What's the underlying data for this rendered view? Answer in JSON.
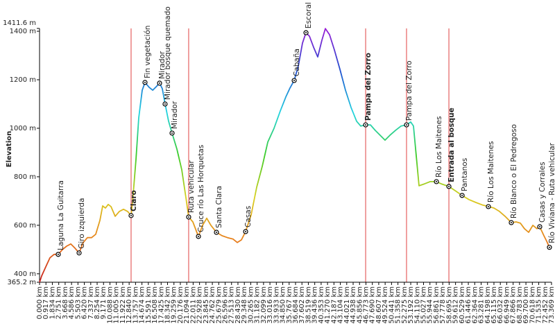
{
  "chart_data": {
    "type": "elevation-profile",
    "y_label": "Elevation",
    "ylim": [
      365.2,
      1411.6
    ],
    "yticks": [
      {
        "value": 365.2,
        "label": "365.2 m"
      },
      {
        "value": 400,
        "label": "400 m"
      },
      {
        "value": 600,
        "label": "600 m"
      },
      {
        "value": 800,
        "label": "800 m"
      },
      {
        "value": 1000,
        "label": "1000 m"
      },
      {
        "value": 1200,
        "label": "1200 m"
      },
      {
        "value": 1400,
        "label": "1400 m"
      },
      {
        "value": 1411.6,
        "label": "1411.6 m"
      }
    ],
    "xlim": [
      0,
      73.369
    ],
    "xticks": [
      {
        "value": 0,
        "label": "0.000 km"
      },
      {
        "value": 0.917,
        "label": "0.917 km"
      },
      {
        "value": 1.834,
        "label": "1.834 km"
      },
      {
        "value": 2.751,
        "label": "2.751 km"
      },
      {
        "value": 3.668,
        "label": "3.668 km"
      },
      {
        "value": 4.586,
        "label": "4.586 km"
      },
      {
        "value": 5.503,
        "label": "5.503 km"
      },
      {
        "value": 6.42,
        "label": "6.420 km"
      },
      {
        "value": 7.337,
        "label": "7.337 km"
      },
      {
        "value": 8.254,
        "label": "8.254 km"
      },
      {
        "value": 9.171,
        "label": "9.171 km"
      },
      {
        "value": 10.088,
        "label": "10.088 km"
      },
      {
        "value": 11.005,
        "label": "11.005 km"
      },
      {
        "value": 11.922,
        "label": "11.922 km"
      },
      {
        "value": 12.84,
        "label": "12.840 km"
      },
      {
        "value": 13.757,
        "label": "13.757 km"
      },
      {
        "value": 14.674,
        "label": "14.674 km"
      },
      {
        "value": 15.591,
        "label": "15.591 km"
      },
      {
        "value": 16.508,
        "label": "16.508 km"
      },
      {
        "value": 17.425,
        "label": "17.425 km"
      },
      {
        "value": 18.342,
        "label": "18.342 km"
      },
      {
        "value": 19.259,
        "label": "19.259 km"
      },
      {
        "value": 20.176,
        "label": "20.176 km"
      },
      {
        "value": 21.094,
        "label": "21.094 km"
      },
      {
        "value": 22.011,
        "label": "22.011 km"
      },
      {
        "value": 22.928,
        "label": "22.928 km"
      },
      {
        "value": 23.845,
        "label": "23.845 km"
      },
      {
        "value": 24.762,
        "label": "24.762 km"
      },
      {
        "value": 25.679,
        "label": "25.679 km"
      },
      {
        "value": 26.596,
        "label": "26.596 km"
      },
      {
        "value": 27.513,
        "label": "27.513 km"
      },
      {
        "value": 28.43,
        "label": "28.430 km"
      },
      {
        "value": 29.348,
        "label": "29.348 km"
      },
      {
        "value": 30.265,
        "label": "30.265 km"
      },
      {
        "value": 31.182,
        "label": "31.182 km"
      },
      {
        "value": 32.099,
        "label": "32.099 km"
      },
      {
        "value": 33.016,
        "label": "33.016 km"
      },
      {
        "value": 33.933,
        "label": "33.933 km"
      },
      {
        "value": 34.85,
        "label": "34.850 km"
      },
      {
        "value": 35.767,
        "label": "35.767 km"
      },
      {
        "value": 36.684,
        "label": "36.684 km"
      },
      {
        "value": 37.602,
        "label": "37.602 km"
      },
      {
        "value": 38.519,
        "label": "38.519 km"
      },
      {
        "value": 39.436,
        "label": "39.436 km"
      },
      {
        "value": 40.353,
        "label": "40.353 km"
      },
      {
        "value": 41.27,
        "label": "41.270 km"
      },
      {
        "value": 42.187,
        "label": "42.187 km"
      },
      {
        "value": 43.104,
        "label": "43.104 km"
      },
      {
        "value": 44.021,
        "label": "44.021 km"
      },
      {
        "value": 44.938,
        "label": "44.938 km"
      },
      {
        "value": 45.856,
        "label": "45.856 km"
      },
      {
        "value": 46.773,
        "label": "46.773 km"
      },
      {
        "value": 47.69,
        "label": "47.690 km"
      },
      {
        "value": 48.607,
        "label": "48.607 km"
      },
      {
        "value": 49.524,
        "label": "49.524 km"
      },
      {
        "value": 50.441,
        "label": "50.441 km"
      },
      {
        "value": 51.358,
        "label": "51.358 km"
      },
      {
        "value": 52.275,
        "label": "52.275 km"
      },
      {
        "value": 53.192,
        "label": "53.192 km"
      },
      {
        "value": 54.11,
        "label": "54.110 km"
      },
      {
        "value": 55.027,
        "label": "55.027 km"
      },
      {
        "value": 55.944,
        "label": "55.944 km"
      },
      {
        "value": 56.861,
        "label": "56.861 km"
      },
      {
        "value": 57.778,
        "label": "57.778 km"
      },
      {
        "value": 58.695,
        "label": "58.695 km"
      },
      {
        "value": 59.612,
        "label": "59.612 km"
      },
      {
        "value": 60.529,
        "label": "60.529 km"
      },
      {
        "value": 61.446,
        "label": "61.446 km"
      },
      {
        "value": 62.364,
        "label": "62.364 km"
      },
      {
        "value": 63.281,
        "label": "63.281 km"
      },
      {
        "value": 64.198,
        "label": "64.198 km"
      },
      {
        "value": 65.115,
        "label": "65.115 km"
      },
      {
        "value": 66.032,
        "label": "66.032 km"
      },
      {
        "value": 66.949,
        "label": "66.949 km"
      },
      {
        "value": 67.866,
        "label": "67.866 km"
      },
      {
        "value": 68.783,
        "label": "68.783 km"
      },
      {
        "value": 69.7,
        "label": "69.700 km"
      },
      {
        "value": 70.618,
        "label": "70.618 km"
      },
      {
        "value": 71.535,
        "label": "71.535 km"
      },
      {
        "value": 72.452,
        "label": "72.452 km"
      },
      {
        "value": 73.369,
        "label": "73.369 km"
      }
    ],
    "x": [
      0,
      0.3,
      0.89,
      1.49,
      2.09,
      2.68,
      3.28,
      3.88,
      4.47,
      5.07,
      5.67,
      6.26,
      6.86,
      7.46,
      8.05,
      8.65,
      9.05,
      9.44,
      9.84,
      10.24,
      10.84,
      11.43,
      12.03,
      12.63,
      13.12,
      13.42,
      13.82,
      14.22,
      14.71,
      15.11,
      15.71,
      16.21,
      16.7,
      17.2,
      17.6,
      17.99,
      18.49,
      18.99,
      19.68,
      20.38,
      20.98,
      21.37,
      21.97,
      22.77,
      23.36,
      23.96,
      24.56,
      25.35,
      26.15,
      26.94,
      27.74,
      28.33,
      28.93,
      29.53,
      30.32,
      31.12,
      31.91,
      32.71,
      33.6,
      34.5,
      35.29,
      35.89,
      36.49,
      37.08,
      37.68,
      38.18,
      38.67,
      39.27,
      39.87,
      40.46,
      40.96,
      41.56,
      42.25,
      43.05,
      43.84,
      44.64,
      45.43,
      46.03,
      46.73,
      47.42,
      48.12,
      48.81,
      49.51,
      50.21,
      51.0,
      51.8,
      52.59,
      53.19,
      53.59,
      53.98,
      54.38,
      55.18,
      55.97,
      56.87,
      57.56,
      58.66,
      59.55,
      60.55,
      61.54,
      62.53,
      63.53,
      64.32,
      65.12,
      65.91,
      66.71,
      67.6,
      68.3,
      68.9,
      69.49,
      70.09,
      70.69,
      71.28,
      71.68,
      72.28,
      72.68,
      73.07,
      73.37
    ],
    "values": [
      365,
      391,
      429,
      466,
      480,
      480,
      500,
      514,
      523,
      506,
      486,
      529,
      549,
      549,
      563,
      620,
      680,
      671,
      686,
      677,
      637,
      657,
      666,
      657,
      640,
      729,
      871,
      1043,
      1157,
      1189,
      1169,
      1157,
      1171,
      1186,
      1163,
      1100,
      1029,
      980,
      914,
      829,
      714,
      634,
      614,
      554,
      600,
      629,
      600,
      571,
      557,
      549,
      543,
      529,
      540,
      574,
      643,
      757,
      843,
      943,
      1000,
      1071,
      1129,
      1166,
      1197,
      1257,
      1351,
      1394,
      1380,
      1334,
      1294,
      1363,
      1411,
      1386,
      1323,
      1243,
      1157,
      1086,
      1029,
      1009,
      1014,
      1014,
      991,
      971,
      951,
      971,
      991,
      1009,
      1014,
      1026,
      1009,
      886,
      763,
      771,
      780,
      780,
      771,
      760,
      743,
      723,
      706,
      694,
      683,
      677,
      671,
      657,
      637,
      611,
      614,
      609,
      586,
      571,
      600,
      586,
      594,
      557,
      534,
      509,
      509
    ],
    "colors": [
      "#c81e1e",
      "#e8801c",
      "#d8d020",
      "#3ccc28",
      "#22d4e0",
      "#2050d0",
      "#9a1ed6"
    ],
    "waypoints": [
      {
        "name": "Laguna La Guitarra",
        "x": 2.68,
        "elevation": 480,
        "bold": false,
        "line": false
      },
      {
        "name": "Giro izquierda",
        "x": 5.67,
        "elevation": 486,
        "bold": false,
        "line": false
      },
      {
        "name": "Claro",
        "x": 13.12,
        "elevation": 640,
        "bold": true,
        "line": true
      },
      {
        "name": "Fin vegetación",
        "x": 15.11,
        "elevation": 1189,
        "bold": false,
        "line": false
      },
      {
        "name": "Mirador",
        "x": 17.2,
        "elevation": 1186,
        "bold": false,
        "line": false
      },
      {
        "name": "Mirador bosque quemado",
        "x": 17.99,
        "elevation": 1100,
        "bold": false,
        "line": false
      },
      {
        "name": "Mirador",
        "x": 18.99,
        "elevation": 980,
        "bold": false,
        "line": false
      },
      {
        "name": "Ruta vehicular",
        "x": 21.37,
        "elevation": 634,
        "bold": false,
        "line": true
      },
      {
        "name": "Cruce río Las Horquetas",
        "x": 22.77,
        "elevation": 554,
        "bold": false,
        "line": false
      },
      {
        "name": "Santa Clara",
        "x": 25.35,
        "elevation": 571,
        "bold": false,
        "line": false
      },
      {
        "name": "Casas",
        "x": 29.53,
        "elevation": 574,
        "bold": false,
        "line": false
      },
      {
        "name": "Cabaña",
        "x": 36.49,
        "elevation": 1197,
        "bold": false,
        "line": false
      },
      {
        "name": "Escoral",
        "x": 38.18,
        "elevation": 1394,
        "bold": false,
        "line": false
      },
      {
        "name": "Pampa del Zorro",
        "x": 46.73,
        "elevation": 1014,
        "bold": true,
        "line": true
      },
      {
        "name": "Pampa del Zorro",
        "x": 52.59,
        "elevation": 1014,
        "bold": false,
        "line": true
      },
      {
        "name": "Río Los Maitenes",
        "x": 56.87,
        "elevation": 780,
        "bold": false,
        "line": false
      },
      {
        "name": "Entrada al bosque",
        "x": 58.66,
        "elevation": 760,
        "bold": true,
        "line": true
      },
      {
        "name": "Pantanos",
        "x": 60.55,
        "elevation": 723,
        "bold": false,
        "line": false
      },
      {
        "name": "Río Los Maitenes",
        "x": 64.32,
        "elevation": 677,
        "bold": false,
        "line": false
      },
      {
        "name": "Río Blanco o El Pedregoso",
        "x": 67.6,
        "elevation": 611,
        "bold": false,
        "line": false
      },
      {
        "name": "Casas y Corrales",
        "x": 71.68,
        "elevation": 594,
        "bold": false,
        "line": false
      },
      {
        "name": "Río Viviana - Ruta vehicular",
        "x": 73.07,
        "elevation": 509,
        "bold": false,
        "line": false
      }
    ]
  }
}
